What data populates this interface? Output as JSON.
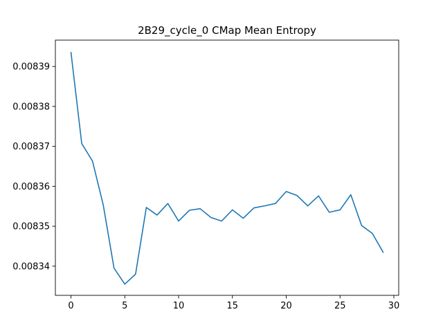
{
  "chart_data": {
    "type": "line",
    "title": "2B29_cycle_0 CMap Mean Entropy",
    "xlabel": "",
    "ylabel": "",
    "xlim": [
      -1.45,
      30.45
    ],
    "ylim": [
      0.0083327,
      0.0083966
    ],
    "xticks": [
      0,
      5,
      10,
      15,
      20,
      25,
      30
    ],
    "xtick_labels": [
      "0",
      "5",
      "10",
      "15",
      "20",
      "25",
      "30"
    ],
    "yticks": [
      0.00834,
      0.00835,
      0.00836,
      0.00837,
      0.00838,
      0.00839
    ],
    "ytick_labels": [
      "0.00834",
      "0.00835",
      "0.00836",
      "0.00837",
      "0.00838",
      "0.00839"
    ],
    "grid": false,
    "series": [
      {
        "color": "#1f77b4",
        "x": [
          0,
          1,
          2,
          3,
          4,
          5,
          6,
          7,
          8,
          9,
          10,
          11,
          12,
          13,
          14,
          15,
          16,
          17,
          18,
          19,
          20,
          21,
          22,
          23,
          24,
          25,
          26,
          27,
          28,
          29
        ],
        "y": [
          0.0083935,
          0.0083707,
          0.0083663,
          0.0083553,
          0.0083395,
          0.0083355,
          0.008338,
          0.0083547,
          0.0083528,
          0.0083557,
          0.0083513,
          0.008354,
          0.0083544,
          0.0083522,
          0.0083513,
          0.0083541,
          0.008352,
          0.0083546,
          0.0083551,
          0.0083557,
          0.0083587,
          0.0083577,
          0.0083551,
          0.0083576,
          0.0083535,
          0.0083541,
          0.0083579,
          0.0083502,
          0.0083482,
          0.0083435
        ]
      }
    ]
  }
}
